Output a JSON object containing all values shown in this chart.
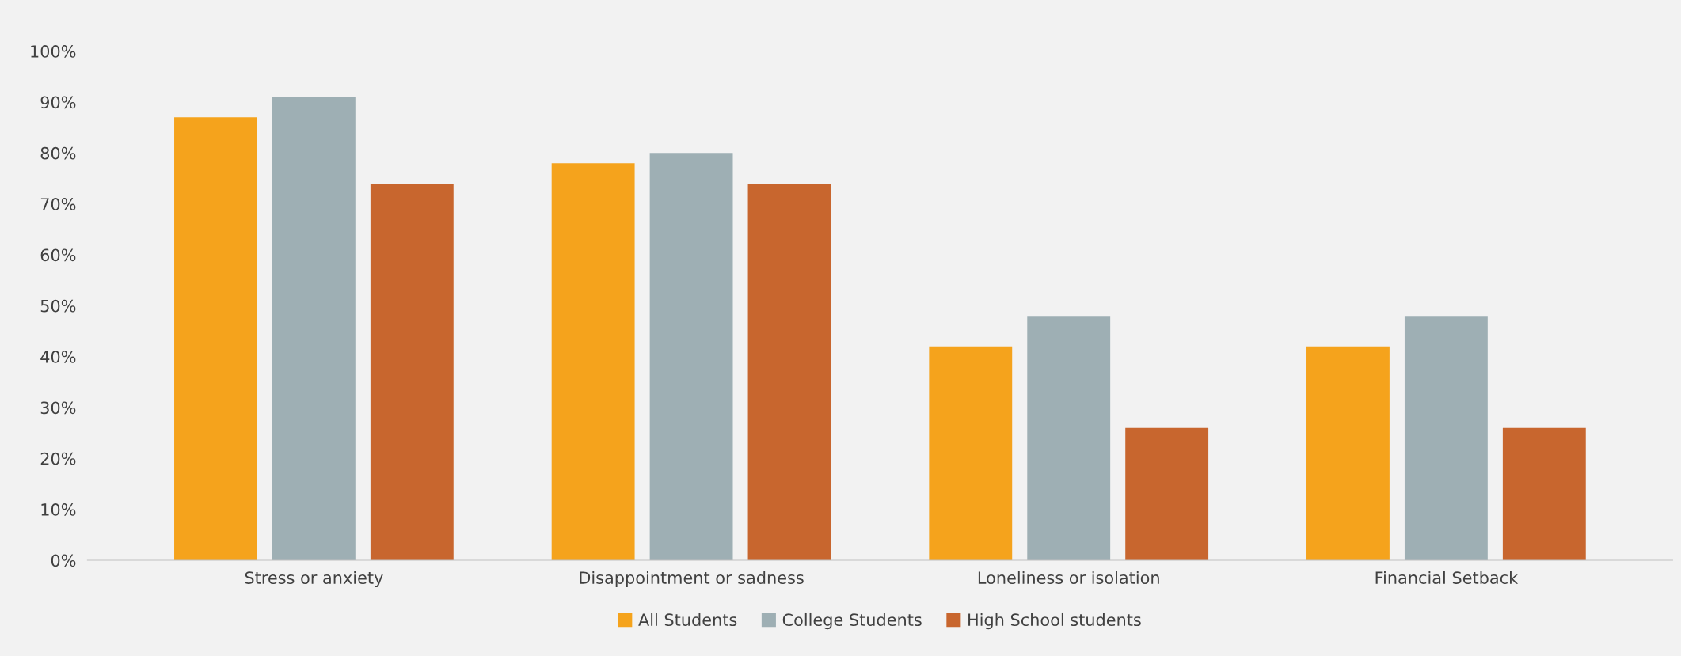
{
  "chart_data": {
    "type": "bar",
    "categories": [
      "Stress or anxiety",
      "Disappointment or sadness",
      "Loneliness or isolation",
      "Financial Setback"
    ],
    "series": [
      {
        "name": "All Students",
        "color": "#f5a31c",
        "values": [
          87,
          78,
          42,
          42
        ]
      },
      {
        "name": "College Students",
        "color": "#9eafb4",
        "values": [
          91,
          80,
          48,
          48
        ]
      },
      {
        "name": "High School students",
        "color": "#c8662e",
        "values": [
          74,
          74,
          26,
          26
        ]
      }
    ],
    "ylim": [
      0,
      100
    ],
    "yticks": [
      {
        "value": 0,
        "label": "0%"
      },
      {
        "value": 10,
        "label": "10%"
      },
      {
        "value": 20,
        "label": "20%"
      },
      {
        "value": 30,
        "label": "30%"
      },
      {
        "value": 40,
        "label": "40%"
      },
      {
        "value": 50,
        "label": "50%"
      },
      {
        "value": 60,
        "label": "60%"
      },
      {
        "value": 70,
        "label": "70%"
      },
      {
        "value": 80,
        "label": "80%"
      },
      {
        "value": 90,
        "label": "90%"
      },
      {
        "value": 100,
        "label": "100%"
      }
    ],
    "grid": false,
    "legend": "bottom"
  }
}
